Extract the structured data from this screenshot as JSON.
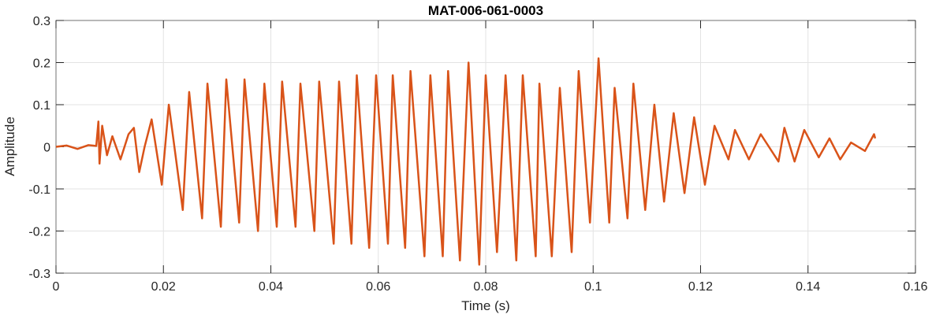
{
  "chart_data": {
    "type": "line",
    "title": "MAT-006-061-0003",
    "xlabel": "Time (s)",
    "ylabel": "Amplitude",
    "xlim": [
      0,
      0.16
    ],
    "ylim": [
      -0.3,
      0.3
    ],
    "xticks": [
      0,
      0.02,
      0.04,
      0.06,
      0.08,
      0.1,
      0.12,
      0.14,
      0.16
    ],
    "xtick_labels": [
      "0",
      "0.02",
      "0.04",
      "0.06",
      "0.08",
      "0.1",
      "0.12",
      "0.14",
      "0.16"
    ],
    "yticks": [
      -0.3,
      -0.2,
      -0.1,
      0,
      0.1,
      0.2,
      0.3
    ],
    "ytick_labels": [
      "-0.3",
      "-0.2",
      "-0.1",
      "0",
      "0.1",
      "0.2",
      "0.3"
    ],
    "grid": true,
    "line_color": "#D95319",
    "series": [
      {
        "x": [
          0,
          0.002,
          0.004,
          0.006,
          0.0075,
          0.0079,
          0.0081,
          0.0086,
          0.0095,
          0.0105,
          0.012,
          0.0135,
          0.0145,
          0.0155,
          0.0165,
          0.0178,
          0.0197,
          0.021,
          0.0236,
          0.0248,
          0.0272,
          0.0282,
          0.0307,
          0.0317,
          0.0341,
          0.0351,
          0.0376,
          0.0388,
          0.0411,
          0.0421,
          0.0446,
          0.0455,
          0.0481,
          0.049,
          0.0517,
          0.0527,
          0.055,
          0.056,
          0.0583,
          0.0596,
          0.0618,
          0.0627,
          0.065,
          0.066,
          0.0686,
          0.0697,
          0.072,
          0.073,
          0.0752,
          0.0768,
          0.0788,
          0.08,
          0.0821,
          0.0837,
          0.0857,
          0.0869,
          0.0893,
          0.09,
          0.0923,
          0.0938,
          0.096,
          0.0973,
          0.0994,
          0.101,
          0.103,
          0.104,
          0.1064,
          0.1075,
          0.1097,
          0.1114,
          0.1132,
          0.115,
          0.117,
          0.1188,
          0.1208,
          0.1226,
          0.1252,
          0.1264,
          0.129,
          0.1312,
          0.1345,
          0.1356,
          0.1375,
          0.1393,
          0.142,
          0.144,
          0.146,
          0.148,
          0.1506,
          0.1523,
          0.1525
        ],
        "y": [
          0,
          0.003,
          -0.005,
          0.004,
          0.002,
          0.06,
          -0.04,
          0.05,
          -0.02,
          0.025,
          -0.03,
          0.03,
          0.045,
          -0.06,
          0.0,
          0.065,
          -0.09,
          0.1,
          -0.15,
          0.13,
          -0.17,
          0.15,
          -0.19,
          0.16,
          -0.18,
          0.16,
          -0.2,
          0.15,
          -0.19,
          0.155,
          -0.19,
          0.15,
          -0.2,
          0.155,
          -0.23,
          0.155,
          -0.23,
          0.17,
          -0.24,
          0.17,
          -0.23,
          0.17,
          -0.24,
          0.18,
          -0.26,
          0.17,
          -0.26,
          0.18,
          -0.27,
          0.2,
          -0.28,
          0.17,
          -0.25,
          0.17,
          -0.27,
          0.17,
          -0.26,
          0.15,
          -0.26,
          0.14,
          -0.25,
          0.18,
          -0.18,
          0.21,
          -0.18,
          0.14,
          -0.17,
          0.15,
          -0.15,
          0.1,
          -0.13,
          0.08,
          -0.11,
          0.07,
          -0.09,
          0.05,
          -0.03,
          0.04,
          -0.03,
          0.03,
          -0.035,
          0.045,
          -0.035,
          0.04,
          -0.025,
          0.02,
          -0.03,
          0.01,
          -0.01,
          0.03,
          0.02
        ]
      }
    ]
  }
}
